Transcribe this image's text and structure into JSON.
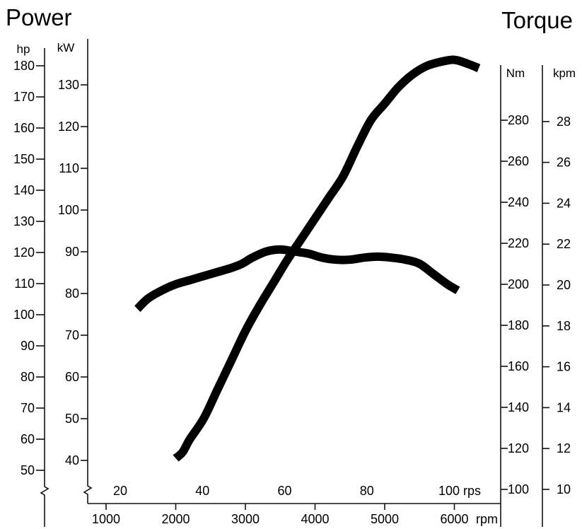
{
  "chart_data": {
    "type": "line",
    "titles": {
      "left": "Power",
      "right": "Torque"
    },
    "x_axis": {
      "rpm_unit": "rpm",
      "rpm_ticks": [
        1000,
        2000,
        3000,
        4000,
        5000,
        6000
      ],
      "rpm_labels": [
        "1000",
        "2000",
        "3000",
        "4000",
        "5000",
        "6000"
      ],
      "rps_unit": "rps",
      "rps_ticks": [
        20,
        40,
        60,
        80,
        100
      ],
      "rps_labels": [
        "20",
        "40",
        "60",
        "80",
        "100"
      ],
      "range": [
        800,
        6700
      ]
    },
    "y_axes": {
      "hp": {
        "unit": "hp",
        "ticks": [
          50,
          60,
          70,
          80,
          90,
          100,
          110,
          120,
          130,
          140,
          150,
          160,
          170,
          180
        ],
        "labels": [
          "50",
          "60",
          "70",
          "80",
          "90",
          "100",
          "110",
          "120",
          "130",
          "140",
          "150",
          "160",
          "170",
          "180"
        ]
      },
      "kw": {
        "unit": "kW",
        "ticks": [
          40,
          50,
          60,
          70,
          80,
          90,
          100,
          110,
          120,
          130
        ],
        "labels": [
          "40",
          "50",
          "60",
          "70",
          "80",
          "90",
          "100",
          "110",
          "120",
          "130"
        ]
      },
      "nm": {
        "unit": "Nm",
        "ticks": [
          100,
          120,
          140,
          160,
          180,
          200,
          220,
          240,
          260,
          280
        ],
        "labels": [
          "100",
          "120",
          "140",
          "160",
          "180",
          "200",
          "220",
          "240",
          "260",
          "280"
        ]
      },
      "kpm": {
        "unit": "kpm",
        "ticks": [
          10,
          12,
          14,
          16,
          18,
          20,
          22,
          24,
          26,
          28
        ],
        "labels": [
          "10",
          "12",
          "14",
          "16",
          "18",
          "20",
          "22",
          "24",
          "26",
          "28"
        ]
      }
    },
    "series": [
      {
        "axis": "kw",
        "x": [
          2000,
          2100,
          2200,
          2400,
          2600,
          2800,
          3000,
          3200,
          3400,
          3600,
          3800,
          4000,
          4200,
          4400,
          4600,
          4800,
          5000,
          5200,
          5400,
          5600,
          5800,
          6000,
          6200,
          6350
        ],
        "y": [
          40.5,
          42,
          45,
          50,
          57,
          64,
          71,
          77,
          82.5,
          88,
          93,
          98,
          103,
          108,
          115,
          121.5,
          125.5,
          129.5,
          132.5,
          134.5,
          135.5,
          136,
          135,
          134
        ]
      },
      {
        "axis": "nm",
        "x": [
          1450,
          1600,
          1800,
          2000,
          2200,
          2400,
          2600,
          2800,
          2950,
          3100,
          3300,
          3500,
          3700,
          3900,
          4100,
          4300,
          4500,
          4700,
          4900,
          5100,
          5300,
          5500,
          5700,
          5900,
          6050
        ],
        "y": [
          188,
          193,
          197,
          200,
          202,
          204,
          206,
          208,
          210,
          213,
          216,
          217,
          216,
          215,
          213,
          212,
          212,
          213,
          213.5,
          213,
          212,
          210,
          205,
          200,
          197
        ]
      }
    ],
    "grid": false
  }
}
